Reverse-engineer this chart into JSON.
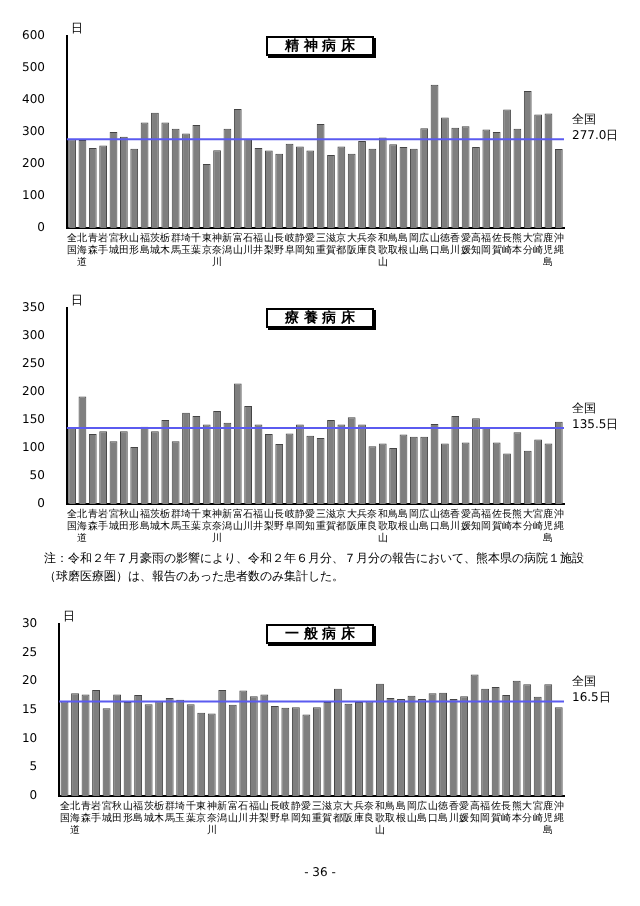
{
  "chart_data": [
    {
      "type": "bar",
      "title": "精 神 病 床",
      "ylabel": "日",
      "categories": [
        "全国",
        "北海道",
        "青森",
        "岩手",
        "宮城",
        "秋田",
        "山形",
        "福島",
        "茨城",
        "栃木",
        "群馬",
        "埼玉",
        "千葉",
        "東京",
        "神奈川",
        "新潟",
        "富山",
        "石川",
        "福井",
        "山梨",
        "長野",
        "岐阜",
        "静岡",
        "愛知",
        "三重",
        "滋賀",
        "京都",
        "大阪",
        "兵庫",
        "奈良",
        "和歌山",
        "鳥取",
        "島根",
        "岡山",
        "広島",
        "山口",
        "徳島",
        "香川",
        "愛媛",
        "高知",
        "福岡",
        "佐賀",
        "長崎",
        "熊本",
        "大分",
        "宮崎",
        "鹿児島",
        "沖縄"
      ],
      "values": [
        277,
        275,
        250,
        258,
        300,
        285,
        248,
        330,
        360,
        330,
        310,
        295,
        322,
        200,
        243,
        310,
        372,
        278,
        250,
        242,
        232,
        263,
        255,
        242,
        325,
        228,
        255,
        232,
        272,
        248,
        283,
        262,
        253,
        248,
        312,
        448,
        345,
        313,
        318,
        253,
        308,
        300,
        370,
        310,
        428,
        355,
        358,
        247
      ],
      "color": "#7f7f7f",
      "ylim": [
        0,
        600
      ],
      "yticks": [
        0,
        100,
        200,
        300,
        400,
        500,
        600
      ],
      "grid": false,
      "ref_lines": [
        {
          "axis": "y",
          "value": 277.0,
          "label": "全国 277.0日",
          "color": "#5b5bf0"
        }
      ]
    },
    {
      "type": "bar",
      "title": "療 養 病 床",
      "ylabel": "日",
      "categories": [
        "全国",
        "北海道",
        "青森",
        "岩手",
        "宮城",
        "秋田",
        "山形",
        "福島",
        "茨城",
        "栃木",
        "群馬",
        "埼玉",
        "千葉",
        "東京",
        "神奈川",
        "新潟",
        "富山",
        "石川",
        "福井",
        "山梨",
        "長野",
        "岐阜",
        "静岡",
        "愛知",
        "三重",
        "滋賀",
        "京都",
        "大阪",
        "兵庫",
        "奈良",
        "和歌山",
        "鳥取",
        "島根",
        "岡山",
        "広島",
        "山口",
        "徳島",
        "香川",
        "愛媛",
        "高知",
        "福岡",
        "佐賀",
        "長崎",
        "熊本",
        "大分",
        "宮崎",
        "鹿児島",
        "沖縄"
      ],
      "values": [
        135.5,
        192,
        125,
        130,
        112,
        130,
        102,
        138,
        130,
        150,
        112,
        163,
        157,
        142,
        166,
        145,
        215,
        175,
        142,
        125,
        107,
        126,
        142,
        122,
        118,
        150,
        142,
        155,
        142,
        103,
        108,
        100,
        124,
        120,
        120,
        143,
        108,
        157,
        110,
        153,
        137,
        110,
        90,
        128,
        95,
        115,
        108,
        147
      ],
      "color": "#7f7f7f",
      "ylim": [
        0,
        350
      ],
      "yticks": [
        0,
        50,
        100,
        150,
        200,
        250,
        300,
        350
      ],
      "grid": false,
      "ref_lines": [
        {
          "axis": "y",
          "value": 135.5,
          "label": "全国 135.5日",
          "color": "#5b5bf0"
        }
      ],
      "annotations": [
        "注：令和２年７月豪雨の影響により、令和２年６月分、７月分の報告において、熊本県の病院１施設（球磨医療圏）は、報告のあった患者数のみ集計した。"
      ]
    },
    {
      "type": "bar",
      "title": "一 般 病 床",
      "ylabel": "日",
      "categories": [
        "全国",
        "北海道",
        "青森",
        "岩手",
        "宮城",
        "秋田",
        "山形",
        "福島",
        "茨城",
        "栃木",
        "群馬",
        "埼玉",
        "千葉",
        "東京",
        "神奈川",
        "新潟",
        "富山",
        "石川",
        "福井",
        "山梨",
        "長野",
        "岐阜",
        "静岡",
        "愛知",
        "三重",
        "滋賀",
        "京都",
        "大阪",
        "兵庫",
        "奈良",
        "和歌山",
        "鳥取",
        "島根",
        "岡山",
        "広島",
        "山口",
        "徳島",
        "香川",
        "愛媛",
        "高知",
        "福岡",
        "佐賀",
        "長崎",
        "熊本",
        "大分",
        "宮崎",
        "鹿児島",
        "沖縄"
      ],
      "values": [
        16.5,
        17.9,
        17.7,
        18.5,
        15.3,
        17.7,
        16.4,
        17.6,
        16.0,
        16.5,
        17.1,
        16.8,
        16.0,
        14.5,
        14.4,
        18.5,
        15.9,
        18.4,
        17.4,
        17.7,
        15.7,
        15.4,
        15.5,
        14.2,
        15.5,
        16.4,
        18.7,
        16.1,
        16.4,
        16.5,
        19.6,
        17.1,
        16.9,
        17.5,
        16.9,
        17.9,
        18.0,
        16.9,
        17.4,
        21.2,
        18.7,
        19.0,
        17.6,
        20.1,
        19.5,
        17.3,
        19.5,
        15.5
      ],
      "color": "#7f7f7f",
      "ylim": [
        0,
        30
      ],
      "yticks": [
        0,
        5,
        10,
        15,
        20,
        25,
        30
      ],
      "grid": false,
      "ref_lines": [
        {
          "axis": "y",
          "value": 16.5,
          "label": "全国 16.5日",
          "color": "#5b5bf0"
        }
      ],
      "annotations": [
        "- 36 -"
      ]
    }
  ]
}
